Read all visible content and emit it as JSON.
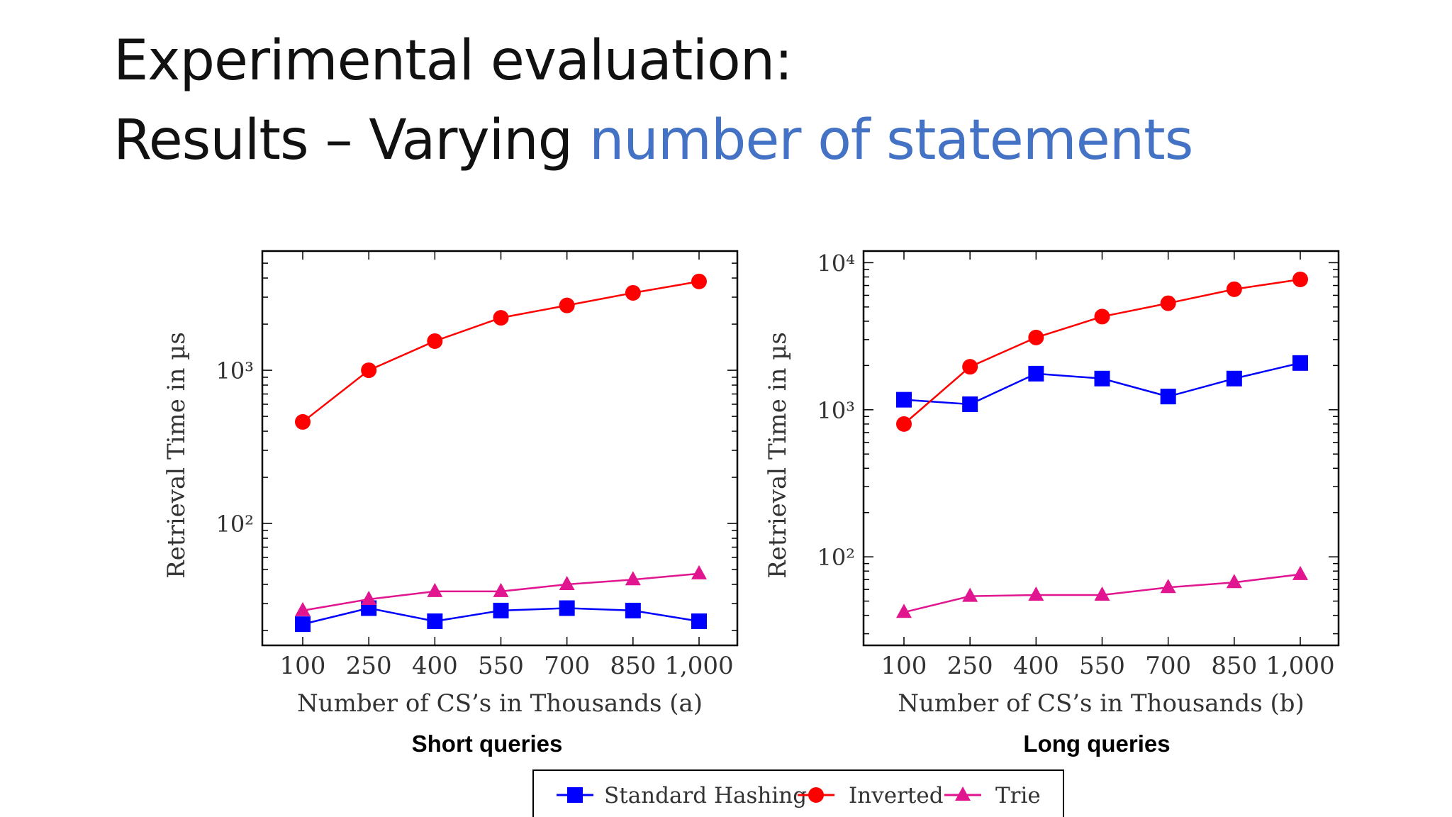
{
  "slide": {
    "title_line1": "Experimental evaluation:",
    "title_line2_prefix": "Results – Varying ",
    "title_line2_accent": "number of statements",
    "accent_color": "#4472c4"
  },
  "legend": {
    "entries": [
      {
        "label": "Standard Hashing",
        "color": "#0000ff",
        "marker": "square"
      },
      {
        "label": "Inverted",
        "color": "#ff0000",
        "marker": "circle"
      },
      {
        "label": "Trie",
        "color": "#e0158f",
        "marker": "triangle"
      }
    ]
  },
  "chart_data": [
    {
      "type": "line",
      "caption": "Short queries",
      "xlabel": "Number of CS’s in Thousands (a)",
      "ylabel": "Retrieval Time in µs",
      "x": [
        100,
        250,
        400,
        550,
        700,
        850,
        1000
      ],
      "x_tick_labels": [
        "100",
        "250",
        "400",
        "550",
        "700",
        "850",
        "1,000"
      ],
      "y_scale": "log",
      "ylim": [
        16,
        6000
      ],
      "y_major_ticks": [
        100,
        1000
      ],
      "y_tick_labels": [
        "10²",
        "10³"
      ],
      "grid": false,
      "series": [
        {
          "name": "Standard Hashing",
          "values": [
            22,
            28,
            23,
            27,
            28,
            27,
            23
          ]
        },
        {
          "name": "Inverted",
          "values": [
            460,
            1000,
            1550,
            2200,
            2650,
            3200,
            3800
          ]
        },
        {
          "name": "Trie",
          "values": [
            27,
            32,
            36,
            36,
            40,
            43,
            47
          ]
        }
      ]
    },
    {
      "type": "line",
      "caption": "Long queries",
      "xlabel": "Number of CS’s in Thousands (b)",
      "ylabel": "Retrieval Time in µs",
      "x": [
        100,
        250,
        400,
        550,
        700,
        850,
        1000
      ],
      "x_tick_labels": [
        "100",
        "250",
        "400",
        "550",
        "700",
        "850",
        "1,000"
      ],
      "y_scale": "log",
      "ylim": [
        25,
        12000
      ],
      "y_major_ticks": [
        100,
        1000,
        10000
      ],
      "y_tick_labels": [
        "10²",
        "10³",
        "10⁴"
      ],
      "grid": false,
      "series": [
        {
          "name": "Standard Hashing",
          "values": [
            1170,
            1090,
            1760,
            1630,
            1230,
            1630,
            2080
          ]
        },
        {
          "name": "Inverted",
          "values": [
            800,
            1960,
            3100,
            4300,
            5300,
            6600,
            7700
          ]
        },
        {
          "name": "Trie",
          "values": [
            42,
            54,
            55,
            55,
            62,
            67,
            76
          ]
        }
      ]
    }
  ]
}
